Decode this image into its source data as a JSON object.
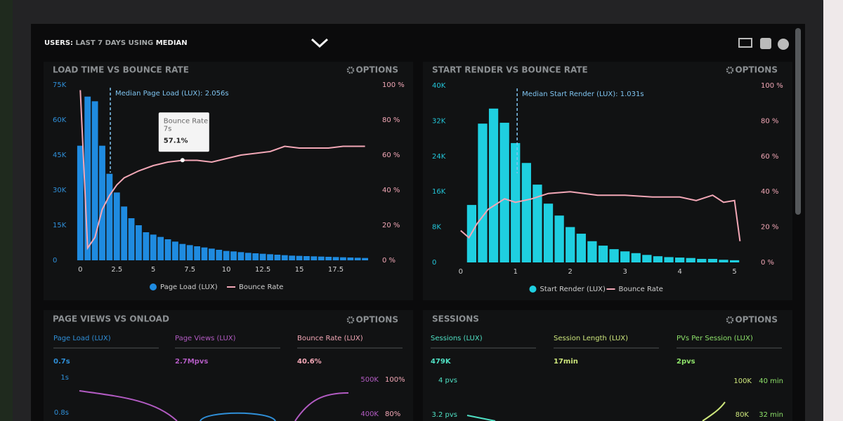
{
  "header": {
    "parts": [
      "USERS:",
      "LAST 7 DAYS",
      "USING",
      "MEDIAN"
    ]
  },
  "chart_data": [
    {
      "type": "combo",
      "title": "LOAD TIME VS BOUNCE RATE",
      "menu": "OPTIONS",
      "xlim": [
        -0.4,
        20
      ],
      "xticks": [
        0,
        2.5,
        5,
        7.5,
        10,
        12.5,
        15,
        17.5
      ],
      "ylim": [
        0,
        75000
      ],
      "yticks": [
        {
          "value": 0,
          "label": "0"
        },
        {
          "value": 15000,
          "label": "15K"
        },
        {
          "value": 30000,
          "label": "30K"
        },
        {
          "value": 45000,
          "label": "45K"
        },
        {
          "value": 60000,
          "label": "60K"
        },
        {
          "value": 75000,
          "label": "75K"
        }
      ],
      "y2lim": [
        0,
        100
      ],
      "y2ticks": [
        {
          "value": 0,
          "label": "0 %"
        },
        {
          "value": 20,
          "label": "20 %"
        },
        {
          "value": 40,
          "label": "40 %"
        },
        {
          "value": 60,
          "label": "60 %"
        },
        {
          "value": 80,
          "label": "80 %"
        },
        {
          "value": 100,
          "label": "100 %"
        }
      ],
      "series": [
        {
          "name": "Page Load (LUX)",
          "type": "bar",
          "color": "#1f8be0",
          "x": [
            0,
            0.5,
            1,
            1.5,
            2,
            2.5,
            3,
            3.5,
            4,
            4.5,
            5,
            5.5,
            6,
            6.5,
            7,
            7.5,
            8,
            8.5,
            9,
            9.5,
            10,
            10.5,
            11,
            11.5,
            12,
            12.5,
            13,
            13.5,
            14,
            14.5,
            15,
            15.5,
            16,
            16.5,
            17,
            17.5,
            18,
            18.5,
            19,
            19.5
          ],
          "values": [
            49000,
            70000,
            68000,
            49000,
            37000,
            29000,
            23000,
            18000,
            15000,
            12000,
            11000,
            10000,
            9000,
            8000,
            7000,
            6500,
            6000,
            5500,
            5000,
            4500,
            4000,
            3800,
            3500,
            3200,
            3000,
            2800,
            2600,
            2400,
            2200,
            2000,
            1900,
            1800,
            1700,
            1600,
            1500,
            1400,
            1300,
            1200,
            1100,
            1000
          ]
        },
        {
          "name": "Bounce Rate",
          "type": "line",
          "axis": "y2",
          "color": "#f2a7b6",
          "x": [
            0,
            0.5,
            1,
            1.5,
            2,
            2.5,
            3,
            4,
            5,
            6,
            7,
            8,
            9,
            10,
            11,
            12,
            13,
            14,
            15,
            16,
            17,
            18,
            19.5
          ],
          "values": [
            97,
            7,
            13,
            29,
            37,
            43,
            47,
            51,
            54,
            56,
            57,
            57,
            56,
            58,
            60,
            61,
            62,
            65,
            64,
            64,
            64,
            65,
            65
          ]
        }
      ],
      "annotations": [
        {
          "x": 2.056,
          "text": "Median Page Load (LUX): 2.056s"
        }
      ],
      "tooltip": {
        "title": "Bounce Rate",
        "x": 7,
        "x_label": "7s",
        "value": 57.1,
        "value_label": "57.1%"
      }
    },
    {
      "type": "combo",
      "title": "START RENDER VS BOUNCE RATE",
      "menu": "OPTIONS",
      "xlim": [
        -0.1,
        5.3
      ],
      "xticks": [
        0,
        1,
        2,
        3,
        4,
        5
      ],
      "ylim": [
        0,
        40000
      ],
      "yticks": [
        {
          "value": 0,
          "label": "0"
        },
        {
          "value": 8000,
          "label": "8K"
        },
        {
          "value": 16000,
          "label": "16K"
        },
        {
          "value": 24000,
          "label": "24K"
        },
        {
          "value": 32000,
          "label": "32K"
        },
        {
          "value": 40000,
          "label": "40K"
        }
      ],
      "y2lim": [
        0,
        100
      ],
      "y2ticks": [
        {
          "value": 0,
          "label": "0 %"
        },
        {
          "value": 20,
          "label": "20 %"
        },
        {
          "value": 40,
          "label": "40 %"
        },
        {
          "value": 60,
          "label": "60 %"
        },
        {
          "value": 80,
          "label": "80 %"
        },
        {
          "value": 100,
          "label": "100 %"
        }
      ],
      "series": [
        {
          "name": "Start Render (LUX)",
          "type": "bar",
          "color": "#1fcfe0",
          "x": [
            0.2,
            0.4,
            0.6,
            0.8,
            1,
            1.2,
            1.4,
            1.6,
            1.8,
            2,
            2.2,
            2.4,
            2.6,
            2.8,
            3,
            3.2,
            3.4,
            3.6,
            3.8,
            4,
            4.2,
            4.4,
            4.6,
            4.8,
            5
          ],
          "values": [
            13000,
            31400,
            34800,
            31600,
            27000,
            22500,
            17600,
            13300,
            10600,
            8000,
            6500,
            4800,
            3800,
            3000,
            2500,
            2100,
            1700,
            1400,
            1200,
            1100,
            1000,
            800,
            800,
            600,
            500
          ]
        },
        {
          "name": "Bounce Rate",
          "type": "line",
          "axis": "y2",
          "color": "#f2a7b6",
          "x": [
            0,
            0.15,
            0.3,
            0.5,
            0.8,
            1,
            1.3,
            1.6,
            2,
            2.5,
            3,
            3.5,
            4,
            4.3,
            4.6,
            4.8,
            5,
            5.1
          ],
          "values": [
            18,
            14,
            22,
            30,
            36,
            34,
            36,
            39,
            40,
            38,
            38,
            37,
            37,
            35,
            38,
            34,
            35,
            12
          ]
        }
      ],
      "annotations": [
        {
          "x": 1.031,
          "text": "Median Start Render (LUX): 1.031s"
        }
      ]
    }
  ],
  "panels": [
    {
      "title": "PAGE VIEWS VS ONLOAD",
      "menu": "OPTIONS",
      "metrics": [
        {
          "label": "Page Load (LUX)",
          "value": "0.7s"
        },
        {
          "label": "Page Views (LUX)",
          "value": "2.7Mpvs"
        },
        {
          "label": "Bounce Rate (LUX)",
          "value": "40.6%"
        }
      ],
      "axis_labels": [
        "1s",
        "0.8s",
        "500K",
        "400K",
        "100%",
        "80%"
      ]
    },
    {
      "title": "SESSIONS",
      "menu": "OPTIONS",
      "metrics": [
        {
          "label": "Sessions (LUX)",
          "value": "479K"
        },
        {
          "label": "Session Length (LUX)",
          "value": "17min"
        },
        {
          "label": "PVs Per Session (LUX)",
          "value": "2pvs"
        }
      ],
      "axis_labels": [
        "4 pvs",
        "3.2 pvs",
        "100K",
        "80K",
        "40 min",
        "32 min"
      ]
    }
  ]
}
